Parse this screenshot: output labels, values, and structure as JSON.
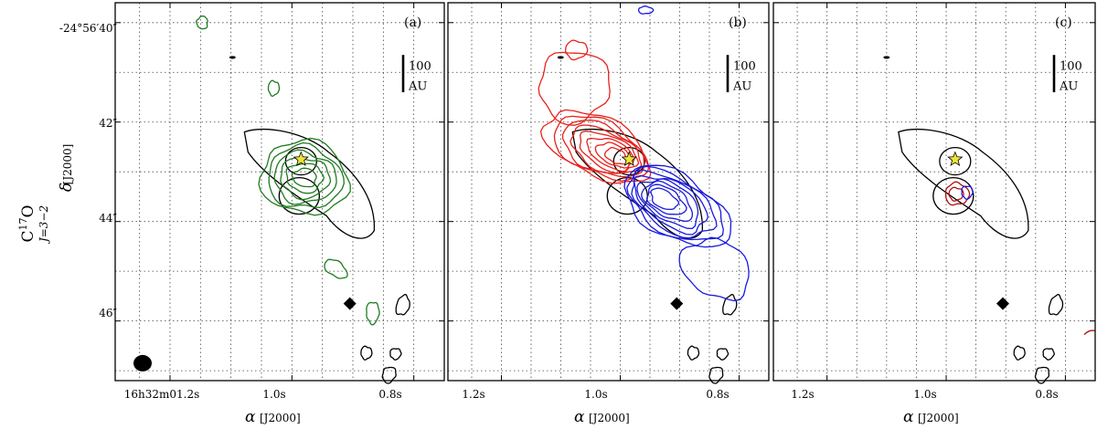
{
  "chart_data": {
    "type": "contour",
    "molecule": "C",
    "molecule_sup": "17",
    "molecule_end": "O",
    "transition": "J=3−2",
    "ylabel_symbol": "δ",
    "ylabel_unit": "[J2000]",
    "xlabel_symbol": "α",
    "xlabel_unit": "[J2000]",
    "y_tick_labels": [
      "-24°56′40″",
      "42″",
      "44″",
      "46″"
    ],
    "y_ticks_arcsec": [
      40,
      42,
      44,
      46
    ],
    "y_range_arcsec": [
      39.6,
      47.2
    ],
    "x_range_sec": [
      1.29,
      0.75
    ],
    "x_ticks_sec": [
      1.2,
      1.0,
      0.8
    ],
    "x_tick_labels_first": [
      "16h32m01.2s",
      "1.0s",
      "0.8s"
    ],
    "x_tick_labels_other": [
      "1.2s",
      "1.0s",
      "0.8s"
    ],
    "scale_bar_label": "100",
    "scale_bar_unit": "AU",
    "colors": {
      "green": "#1f7a1f",
      "red": "#e8211b",
      "blue": "#1a1ae0",
      "dark_red": "#b01010",
      "star": "#f0e33a",
      "black": "#000000"
    },
    "panels": [
      {
        "label": "(a)",
        "emission": "green",
        "description_series": [
          "continuum (black)",
          "C17O green"
        ]
      },
      {
        "label": "(b)",
        "emission": "red/blue",
        "description_series": [
          "continuum (black)",
          "redshifted (red)",
          "blueshifted (blue)"
        ]
      },
      {
        "label": "(c)",
        "emission": "red/blue central",
        "description_series": [
          "continuum (black)",
          "redshifted (red)",
          "blueshifted (blue)"
        ]
      }
    ],
    "markers": {
      "star_position_sec": 0.985,
      "star_position_arcsec": 42.75,
      "diamond_position_sec": 0.905,
      "diamond_position_arcsec": 45.65
    }
  }
}
